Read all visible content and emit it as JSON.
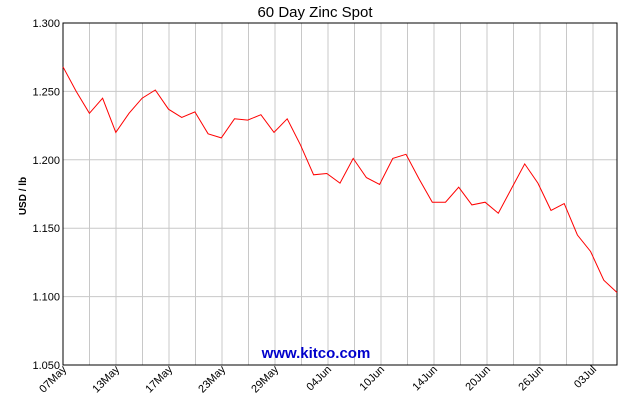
{
  "chart_data": {
    "type": "line",
    "title": "60 Day Zinc Spot",
    "ylabel": "USD / lb",
    "watermark": "www.kitco.com",
    "ylim": [
      1.05,
      1.3
    ],
    "yticks": [
      "1.300",
      "1.250",
      "1.200",
      "1.150",
      "1.100",
      "1.050"
    ],
    "xticks": [
      "07May",
      "13May",
      "17May",
      "23May",
      "29May",
      "04Jun",
      "10Jun",
      "14Jun",
      "20Jun",
      "26Jun",
      "03Jul"
    ],
    "grid": true,
    "line_color": "#ff0000",
    "series": [
      {
        "values": [
          1.268,
          1.25,
          1.234,
          1.245,
          1.22,
          1.234,
          1.245,
          1.251,
          1.237,
          1.231,
          1.235,
          1.219,
          1.216,
          1.23,
          1.229,
          1.233,
          1.22,
          1.23,
          1.211,
          1.189,
          1.19,
          1.183,
          1.201,
          1.187,
          1.182,
          1.201,
          1.204,
          1.186,
          1.169,
          1.169,
          1.18,
          1.167,
          1.169,
          1.161,
          1.179,
          1.197,
          1.183,
          1.163,
          1.168,
          1.145,
          1.133,
          1.112,
          1.103
        ]
      }
    ]
  }
}
